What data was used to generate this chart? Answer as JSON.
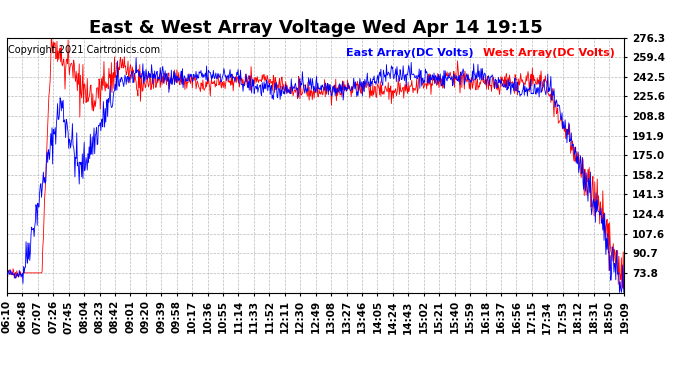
{
  "title": "East & West Array Voltage Wed Apr 14 19:15",
  "copyright": "Copyright 2021 Cartronics.com",
  "legend_east": "East Array(DC Volts)",
  "legend_west": "West Array(DC Volts)",
  "east_color": "blue",
  "west_color": "red",
  "bg_color": "#ffffff",
  "plot_bg_color": "#ffffff",
  "grid_color": "#aaaaaa",
  "y_ticks": [
    73.8,
    90.7,
    107.6,
    124.4,
    141.3,
    158.2,
    175.0,
    191.9,
    208.8,
    225.6,
    242.5,
    259.4,
    276.3
  ],
  "y_min": 56.9,
  "y_max": 276.3,
  "x_tick_labels": [
    "06:10",
    "06:48",
    "07:07",
    "07:26",
    "07:45",
    "08:04",
    "08:23",
    "08:42",
    "09:01",
    "09:20",
    "09:39",
    "09:58",
    "10:17",
    "10:36",
    "10:55",
    "11:14",
    "11:33",
    "11:52",
    "12:11",
    "12:30",
    "12:49",
    "13:08",
    "13:27",
    "13:46",
    "14:05",
    "14:24",
    "14:43",
    "15:02",
    "15:21",
    "15:40",
    "15:59",
    "16:18",
    "16:37",
    "16:56",
    "17:15",
    "17:34",
    "17:53",
    "18:12",
    "18:31",
    "18:50",
    "19:09"
  ],
  "title_fontsize": 13,
  "axis_fontsize": 7.5,
  "copyright_fontsize": 7,
  "legend_fontsize": 8
}
